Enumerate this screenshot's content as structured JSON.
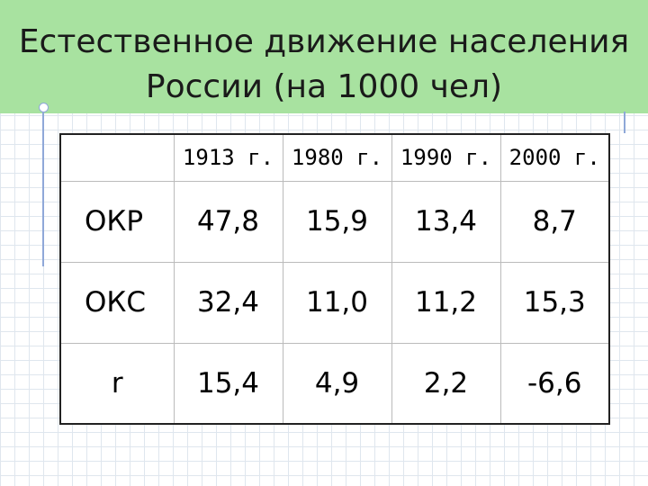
{
  "slide": {
    "title_line1": "Естественное движение населения",
    "title_line2": "России (на 1000 чел)"
  },
  "table": {
    "headers": [
      "",
      "1913 г.",
      "1980 г.",
      "1990 г.",
      "2000 г."
    ],
    "rows": [
      {
        "label": "ОКР",
        "values": [
          "47,8",
          "15,9",
          "13,4",
          "8,7"
        ]
      },
      {
        "label": "ОКС",
        "values": [
          "32,4",
          "11,0",
          "11,2",
          "15,3"
        ]
      },
      {
        "label": "r",
        "values": [
          "15,4",
          "4,9",
          "2,2",
          "-6,6"
        ]
      }
    ]
  },
  "colors": {
    "title_background": "#a8e2a0",
    "grid_lines": "#dfe6ee",
    "accent": "#8fa8d8"
  }
}
